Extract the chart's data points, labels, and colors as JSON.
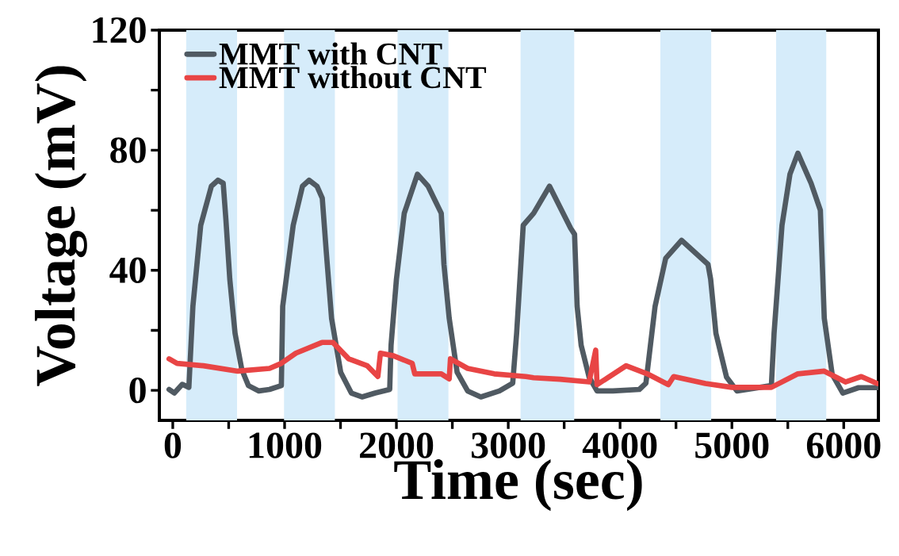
{
  "chart_data": {
    "type": "line",
    "xlabel": "Time (sec)",
    "ylabel": "Voltage (mV)",
    "xlim": [
      -120,
      6310
    ],
    "ylim": [
      -10,
      120
    ],
    "xticks": [
      0,
      {
        "value": 500,
        "label": null
      },
      1000,
      {
        "value": 1500,
        "label": null
      },
      2000,
      {
        "value": 2500,
        "label": null
      },
      3000,
      {
        "value": 3500,
        "label": null
      },
      4000,
      {
        "value": 4500,
        "label": null
      },
      5000,
      {
        "value": 5500,
        "label": null
      },
      6000
    ],
    "yticks": [
      0,
      {
        "value": 20,
        "label": null
      },
      40,
      {
        "value": 60,
        "label": null
      },
      80,
      {
        "value": 100,
        "label": null
      },
      120
    ],
    "legend": "top left",
    "grid": false,
    "marker": "none",
    "line_style": "solid",
    "bands": [
      {
        "axis": "x",
        "from": 120,
        "to": 575,
        "color": "#d6ecfa"
      },
      {
        "axis": "x",
        "from": 995,
        "to": 1450,
        "color": "#d6ecfa"
      },
      {
        "axis": "x",
        "from": 2010,
        "to": 2465,
        "color": "#d6ecfa"
      },
      {
        "axis": "x",
        "from": 3110,
        "to": 3590,
        "color": "#d6ecfa"
      },
      {
        "axis": "x",
        "from": 4360,
        "to": 4815,
        "color": "#d6ecfa"
      },
      {
        "axis": "x",
        "from": 5395,
        "to": 5845,
        "color": "#d6ecfa"
      }
    ],
    "series": [
      {
        "name": "MMT with CNT",
        "color": "#505a62",
        "x": [
          -33,
          14,
          85,
          144,
          180,
          250,
          345,
          404,
          451,
          475,
          510,
          557,
          617,
          676,
          770,
          865,
          971,
          983,
          1077,
          1160,
          1219,
          1290,
          1337,
          1373,
          1420,
          1502,
          1597,
          1692,
          1810,
          1940,
          1952,
          2000,
          2070,
          2188,
          2283,
          2401,
          2425,
          2472,
          2543,
          2637,
          2755,
          2921,
          3040,
          3075,
          3134,
          3227,
          3369,
          3558,
          3593,
          3616,
          3652,
          3723,
          3794,
          3936,
          4172,
          4231,
          4313,
          4408,
          4550,
          4786,
          4810,
          4857,
          4952,
          5046,
          5353,
          5377,
          5448,
          5519,
          5590,
          5708,
          5791,
          5826,
          5897,
          5992,
          6133,
          6299
        ],
        "values": [
          0.3,
          -0.9,
          2,
          1,
          28,
          55,
          68,
          70,
          69,
          57,
          37,
          19,
          7,
          1.6,
          -0.2,
          0.3,
          1.6,
          28,
          55,
          68,
          70,
          68,
          64,
          46,
          24,
          6,
          -0.9,
          -2.2,
          -0.9,
          0.3,
          15,
          37,
          59,
          72,
          68,
          59,
          42,
          24,
          6,
          -0.2,
          -2.2,
          -0.2,
          2.4,
          19,
          55,
          59,
          68,
          54,
          52,
          28,
          15,
          4.4,
          -0.2,
          -0.2,
          0.3,
          2.4,
          28,
          44,
          50,
          42,
          37,
          19,
          4.4,
          -0.2,
          1.6,
          19,
          55,
          72,
          79,
          69,
          60,
          24,
          5.3,
          -0.9,
          0.9,
          0.9
        ]
      },
      {
        "name": "MMT without CNT",
        "color": "#e84545",
        "x": [
          -33,
          38,
          274,
          581,
          865,
          971,
          1101,
          1337,
          1431,
          1573,
          1739,
          1834,
          1857,
          1975,
          2141,
          2164,
          2401,
          2472,
          2483,
          2637,
          2874,
          3158,
          3227,
          3463,
          3723,
          3782,
          3794,
          4054,
          4243,
          4432,
          4479,
          4763,
          4999,
          5353,
          5590,
          5826,
          6015,
          6157,
          6299
        ],
        "values": [
          10.5,
          9,
          8.2,
          6.4,
          7.3,
          9,
          12.4,
          16,
          16,
          10.5,
          8.2,
          4.6,
          12.4,
          11.5,
          9,
          5.5,
          5.5,
          3.8,
          10.5,
          7.3,
          5.5,
          4.6,
          4.2,
          3.7,
          2.8,
          13.4,
          1.9,
          8.2,
          5.5,
          1.9,
          4.6,
          2.3,
          1,
          1,
          5.5,
          6.4,
          2.8,
          4.6,
          2.3
        ]
      }
    ]
  }
}
